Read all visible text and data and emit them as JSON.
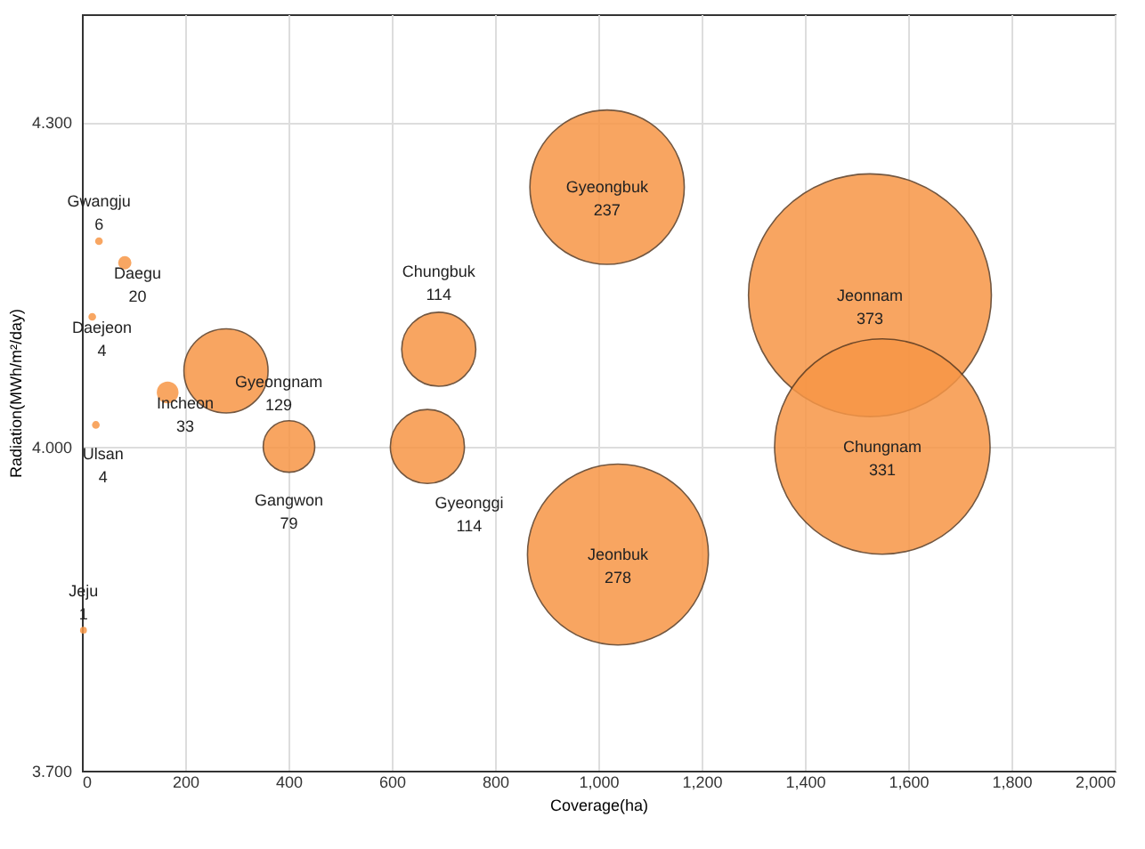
{
  "chart_data": {
    "type": "bubble",
    "xlabel": "Coverage(ha)",
    "ylabel": "Radiation(MWh/m²/day)",
    "xlim": [
      0,
      2000
    ],
    "ylim": [
      3.7,
      4.4
    ],
    "xticks": [
      0,
      {
        "value": 200,
        "label": "200"
      },
      {
        "value": 400,
        "label": "400"
      },
      {
        "value": 600,
        "label": "600"
      },
      {
        "value": 800,
        "label": "800"
      },
      {
        "value": 1000,
        "label": "1,000"
      },
      {
        "value": 1200,
        "label": "1,200"
      },
      {
        "value": 1400,
        "label": "1,400"
      },
      {
        "value": 1600,
        "label": "1,600"
      },
      {
        "value": 1800,
        "label": "1,800"
      },
      {
        "value": 2000,
        "label": "2,000"
      }
    ],
    "yticks": [
      {
        "value": 3.7,
        "label": "3.700"
      },
      {
        "value": 4.0,
        "label": "4.000"
      },
      {
        "value": 4.3,
        "label": "4.300"
      }
    ],
    "grid": true,
    "legend": false,
    "series": [
      {
        "name": "Gwangju",
        "color": "#f79646",
        "x": [
          33
        ],
        "values": [
          4.19
        ],
        "sizes": [
          0.001
        ]
      },
      {
        "name": "Daegu",
        "color": "#f79646",
        "x": [
          83
        ],
        "values": [
          4.17
        ],
        "sizes": [
          0.003
        ]
      },
      {
        "name": "Daejeon",
        "color": "#f79646",
        "x": [
          20
        ],
        "values": [
          4.12
        ],
        "sizes": [
          0.001
        ]
      },
      {
        "name": "Incheon",
        "color": "#f79646",
        "x": [
          166
        ],
        "values": [
          4.05
        ],
        "sizes": [
          0.008
        ]
      },
      {
        "name": "Gyeongnam",
        "color": "#f79646",
        "x": [
          279
        ],
        "values": [
          4.07
        ],
        "sizes": [
          0.12
        ]
      },
      {
        "name": "Ulsan",
        "color": "#f79646",
        "x": [
          27
        ],
        "values": [
          4.02
        ],
        "sizes": [
          0.001
        ]
      },
      {
        "name": "Gangwon",
        "color": "#f79646",
        "x": [
          401
        ],
        "values": [
          4.0
        ],
        "sizes": [
          0.045
        ]
      },
      {
        "name": "Jeju",
        "color": "#f79646",
        "x": [
          3
        ],
        "values": [
          3.83
        ],
        "sizes": [
          0.0008
        ]
      },
      {
        "name": "Chungbuk",
        "color": "#f79646",
        "x": [
          691
        ],
        "values": [
          4.09
        ],
        "sizes": [
          0.093
        ]
      },
      {
        "name": "Gyeonggi",
        "color": "#f79646",
        "x": [
          669
        ],
        "values": [
          4.0
        ],
        "sizes": [
          0.093
        ]
      },
      {
        "name": "Gyeongbuk",
        "color": "#f79646",
        "x": [
          1017
        ],
        "values": [
          4.24
        ],
        "sizes": [
          0.404
        ]
      },
      {
        "name": "Jeonnam",
        "color": "#f79646",
        "x": [
          1526
        ],
        "values": [
          4.14
        ],
        "sizes": [
          1
        ]
      },
      {
        "name": "Chungnam",
        "color": "#f79646",
        "x": [
          1550
        ],
        "values": [
          4.0
        ],
        "sizes": [
          0.787
        ]
      },
      {
        "name": "Jeonbuk",
        "color": "#f79646",
        "x": [
          1038
        ],
        "values": [
          3.9
        ],
        "sizes": [
          0.555
        ]
      }
    ],
    "annotations": [
      {
        "text": "6",
        "x": 33,
        "y": 4.19
      },
      {
        "text": "20",
        "x": 83,
        "y": 4.17
      },
      {
        "text": "4",
        "x": 20,
        "y": 4.12
      },
      {
        "text": "33",
        "x": 166,
        "y": 4.05
      },
      {
        "text": "129",
        "x": 279,
        "y": 4.07
      },
      {
        "text": "4",
        "x": 27,
        "y": 4.02
      },
      "79",
      {
        "text": "1",
        "x": 3,
        "y": 3.83
      },
      {
        "text": "114",
        "x": 691,
        "y": 4.09
      },
      "114",
      {
        "text": "237",
        "x": 1017,
        "y": 4.24
      },
      {
        "text": "373",
        "x": 1526,
        "y": 4.14
      },
      {
        "text": "331",
        "x": 1550,
        "y": 4.0
      },
      {
        "text": "278",
        "x": 1038,
        "y": 3.9
      }
    ]
  }
}
